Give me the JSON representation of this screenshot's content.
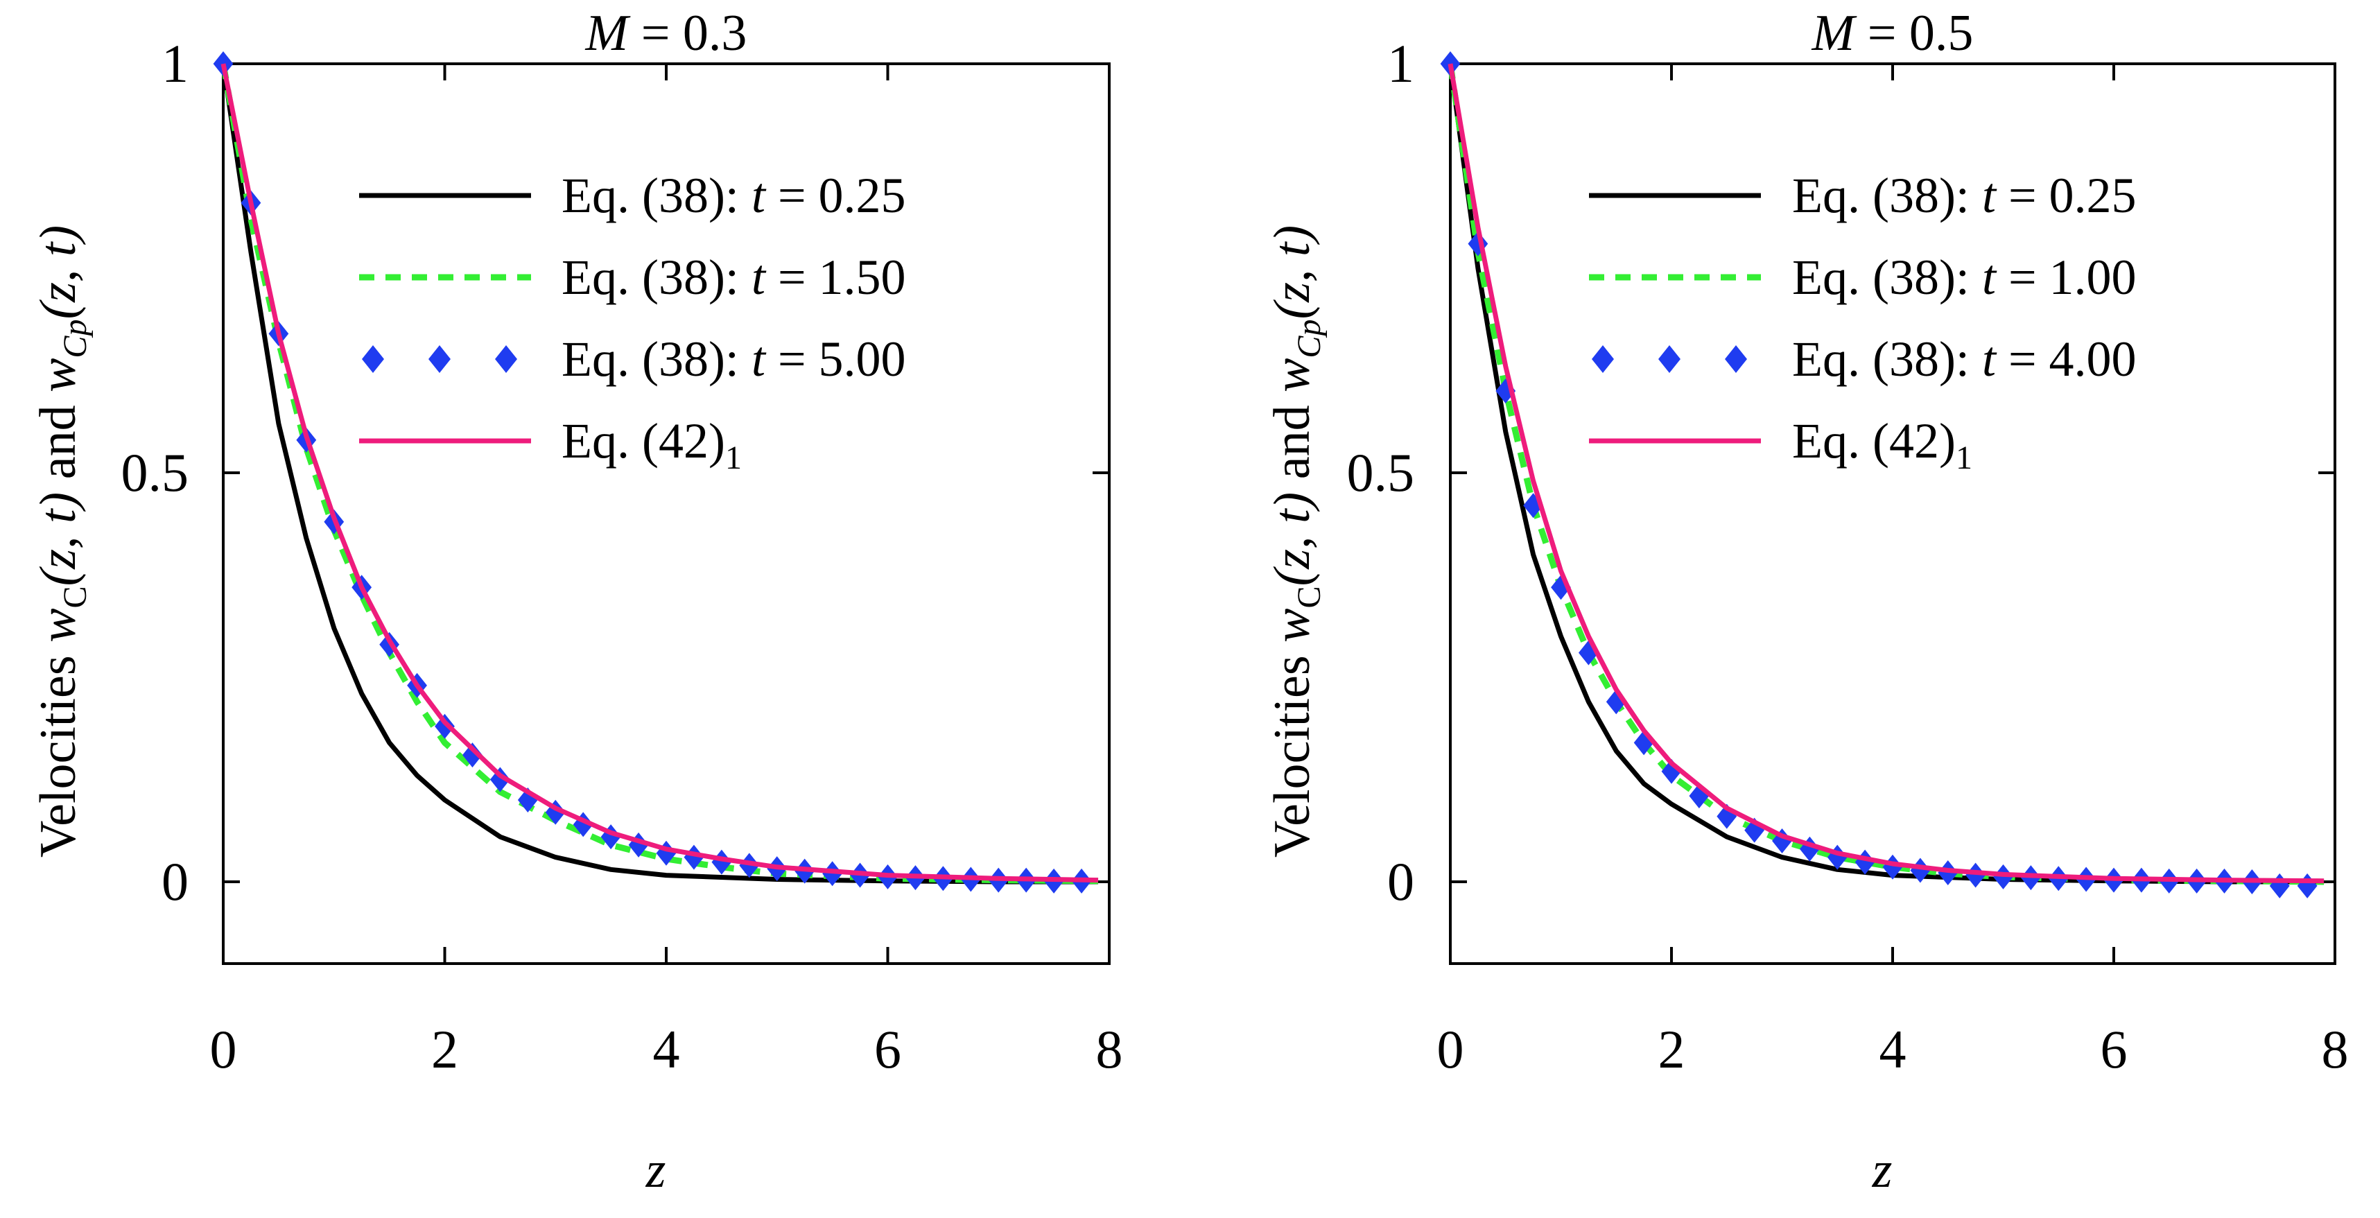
{
  "chart_data": [
    {
      "type": "line",
      "title_var": "M",
      "title_eq": " = ",
      "title_value": "0.3",
      "xlabel": "z",
      "ylabel_parts": [
        "Velocities ",
        "w",
        "C",
        "(z, t)",
        " and ",
        "w",
        "Cp",
        "(z, t)"
      ],
      "xlim": [
        0,
        8
      ],
      "ylim": [
        -0.1,
        1.0
      ],
      "xticks": [
        "0",
        "2",
        "4",
        "6",
        "8"
      ],
      "yticks": [
        "0",
        "0.5",
        "1"
      ],
      "legend_position": "top-right",
      "series": [
        {
          "name": "Eq. (38): t = 0.25",
          "legend_eq": "Eq. (38): ",
          "legend_var": "t",
          "legend_rest": " = 0.25",
          "style": "solid",
          "color": "#000000",
          "x": [
            0,
            0.25,
            0.5,
            0.75,
            1.0,
            1.25,
            1.5,
            1.75,
            2.0,
            2.5,
            3.0,
            3.5,
            4.0,
            5.0,
            6.0,
            7.0,
            7.9
          ],
          "y": [
            1.0,
            0.77,
            0.56,
            0.42,
            0.31,
            0.23,
            0.17,
            0.13,
            0.1,
            0.055,
            0.03,
            0.015,
            0.008,
            0.003,
            0.001,
            0.0,
            0.0
          ]
        },
        {
          "name": "Eq. (38): t = 1.50",
          "legend_eq": "Eq. (38): ",
          "legend_var": "t",
          "legend_rest": " = 1.50",
          "style": "dashed",
          "color": "#33ee33",
          "x": [
            0,
            0.25,
            0.5,
            0.75,
            1.0,
            1.25,
            1.5,
            1.75,
            2.0,
            2.5,
            3.0,
            3.5,
            4.0,
            4.5,
            5.0,
            6.0,
            7.0,
            7.9
          ],
          "y": [
            1.0,
            0.81,
            0.66,
            0.53,
            0.43,
            0.35,
            0.28,
            0.22,
            0.17,
            0.11,
            0.075,
            0.045,
            0.028,
            0.018,
            0.01,
            0.004,
            0.002,
            0.001
          ]
        },
        {
          "name": "Eq. (38): t = 5.00",
          "legend_eq": "Eq. (38): ",
          "legend_var": "t",
          "legend_rest": " = 5.00",
          "style": "diamond",
          "color": "#1f3cf0",
          "x": [
            0,
            0.25,
            0.5,
            0.75,
            1.0,
            1.25,
            1.5,
            1.75,
            2.0,
            2.25,
            2.5,
            2.75,
            3.0,
            3.25,
            3.5,
            3.75,
            4.0,
            4.25,
            4.5,
            4.75,
            5.0,
            5.25,
            5.5,
            5.75,
            6.0,
            6.25,
            6.5,
            6.75,
            7.0,
            7.25,
            7.5,
            7.75
          ],
          "y": [
            1.0,
            0.83,
            0.67,
            0.54,
            0.44,
            0.36,
            0.29,
            0.24,
            0.19,
            0.155,
            0.125,
            0.1,
            0.085,
            0.07,
            0.055,
            0.045,
            0.035,
            0.03,
            0.024,
            0.02,
            0.016,
            0.013,
            0.01,
            0.008,
            0.006,
            0.005,
            0.004,
            0.003,
            0.002,
            0.002,
            0.001,
            0.001
          ]
        },
        {
          "name": "Eq. (42)1",
          "legend_eq": "Eq. (42)",
          "legend_var": "",
          "legend_rest": "",
          "legend_sub": "1",
          "style": "solid",
          "color": "#ee1c7c",
          "x": [
            0,
            0.25,
            0.5,
            0.75,
            1.0,
            1.25,
            1.5,
            1.75,
            2.0,
            2.5,
            3.0,
            3.5,
            4.0,
            4.5,
            5.0,
            6.0,
            7.0,
            7.9
          ],
          "y": [
            1.0,
            0.83,
            0.67,
            0.545,
            0.445,
            0.36,
            0.295,
            0.24,
            0.195,
            0.13,
            0.09,
            0.06,
            0.04,
            0.028,
            0.018,
            0.008,
            0.004,
            0.002
          ]
        }
      ]
    },
    {
      "type": "line",
      "title_var": "M",
      "title_eq": " = ",
      "title_value": "0.5",
      "xlabel": "z",
      "ylabel_parts": [
        "Velocities ",
        "w",
        "C",
        "(z, t)",
        " and ",
        "w",
        "Cp",
        "(z, t)"
      ],
      "xlim": [
        0,
        8
      ],
      "ylim": [
        -0.1,
        1.0
      ],
      "xticks": [
        "0",
        "2",
        "4",
        "6",
        "8"
      ],
      "yticks": [
        "0",
        "0.5",
        "1"
      ],
      "legend_position": "top-right",
      "series": [
        {
          "name": "Eq. (38): t = 0.25",
          "legend_eq": "Eq. (38): ",
          "legend_var": "t",
          "legend_rest": " = 0.25",
          "style": "solid",
          "color": "#000000",
          "x": [
            0,
            0.25,
            0.5,
            0.75,
            1.0,
            1.25,
            1.5,
            1.75,
            2.0,
            2.5,
            3.0,
            3.5,
            4.0,
            5.0,
            6.0,
            7.0,
            7.9
          ],
          "y": [
            1.0,
            0.75,
            0.55,
            0.4,
            0.3,
            0.22,
            0.16,
            0.12,
            0.095,
            0.055,
            0.03,
            0.015,
            0.008,
            0.003,
            0.001,
            0.0,
            0.0
          ]
        },
        {
          "name": "Eq. (38): t = 1.00",
          "legend_eq": "Eq. (38): ",
          "legend_var": "t",
          "legend_rest": " = 1.00",
          "style": "dashed",
          "color": "#33ee33",
          "x": [
            0,
            0.25,
            0.5,
            0.75,
            1.0,
            1.25,
            1.5,
            1.75,
            2.0,
            2.5,
            3.0,
            3.5,
            4.0,
            4.5,
            5.0,
            6.0,
            7.0,
            7.9
          ],
          "y": [
            1.0,
            0.77,
            0.6,
            0.46,
            0.36,
            0.28,
            0.22,
            0.17,
            0.13,
            0.08,
            0.05,
            0.03,
            0.018,
            0.01,
            0.006,
            0.002,
            0.001,
            0.0
          ]
        },
        {
          "name": "Eq. (38): t = 4.00",
          "legend_eq": "Eq. (38): ",
          "legend_var": "t",
          "legend_rest": " = 4.00",
          "style": "diamond",
          "color": "#1f3cf0",
          "x": [
            0,
            0.25,
            0.5,
            0.75,
            1.0,
            1.25,
            1.5,
            1.75,
            2.0,
            2.25,
            2.5,
            2.75,
            3.0,
            3.25,
            3.5,
            3.75,
            4.0,
            4.25,
            4.5,
            4.75,
            5.0,
            5.25,
            5.5,
            5.75,
            6.0,
            6.25,
            6.5,
            6.75,
            7.0,
            7.25,
            7.5,
            7.75
          ],
          "y": [
            1.0,
            0.78,
            0.6,
            0.46,
            0.36,
            0.28,
            0.22,
            0.17,
            0.135,
            0.105,
            0.08,
            0.063,
            0.05,
            0.04,
            0.03,
            0.024,
            0.018,
            0.014,
            0.011,
            0.008,
            0.006,
            0.005,
            0.004,
            0.003,
            0.002,
            0.002,
            0.001,
            0.001,
            0.001,
            0.0,
            -0.005,
            -0.005
          ]
        },
        {
          "name": "Eq. (42)1",
          "legend_eq": "Eq. (42)",
          "legend_var": "",
          "legend_rest": "",
          "legend_sub": "1",
          "style": "solid",
          "color": "#ee1c7c",
          "x": [
            0,
            0.25,
            0.5,
            0.75,
            1.0,
            1.25,
            1.5,
            1.75,
            2.0,
            2.5,
            3.0,
            3.5,
            4.0,
            4.5,
            5.0,
            6.0,
            7.0,
            7.9
          ],
          "y": [
            1.0,
            0.8,
            0.63,
            0.49,
            0.38,
            0.3,
            0.235,
            0.185,
            0.145,
            0.09,
            0.056,
            0.035,
            0.022,
            0.014,
            0.009,
            0.004,
            0.002,
            0.001
          ]
        }
      ]
    }
  ]
}
